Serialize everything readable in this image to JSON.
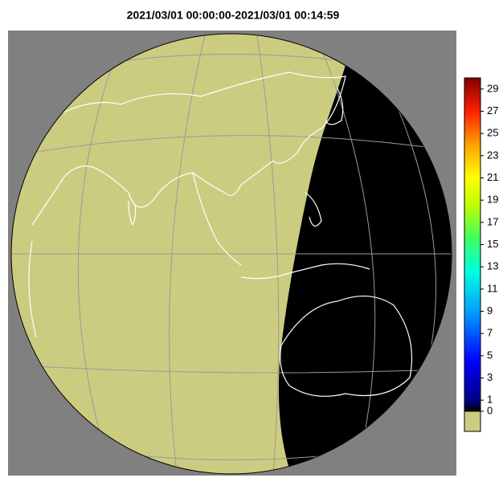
{
  "title": "2021/03/01 00:00:00-2021/03/01 00:14:59",
  "colorbar": {
    "ticks": [
      29,
      27,
      25,
      23,
      21,
      19,
      17,
      15,
      13,
      11,
      9,
      7,
      5,
      3,
      1,
      0
    ],
    "lim": [
      0,
      30
    ]
  }
}
